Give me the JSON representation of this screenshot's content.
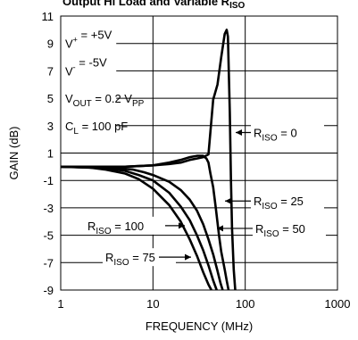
{
  "chart_data": {
    "type": "line",
    "title_fragment": "Output Hi Load and Variable R",
    "title_sub": "ISO",
    "xlabel": "FREQUENCY (MHz)",
    "ylabel": "GAIN (dB)",
    "xscale": "log",
    "xlim": [
      1,
      1000
    ],
    "ylim": [
      -9,
      11
    ],
    "x_ticks": [
      "1",
      "10",
      "100",
      "1000"
    ],
    "y_ticks": [
      "11",
      "9",
      "7",
      "5",
      "3",
      "1",
      "-1",
      "-3",
      "-5",
      "-7",
      "-9"
    ],
    "grid": true,
    "conditions": [
      {
        "base": "V",
        "sup": "+",
        "sub": "",
        "rest": " = +5V"
      },
      {
        "base": "V",
        "sup": "-",
        "sub": "",
        "rest": " = -5V"
      },
      {
        "base": "V",
        "sup": "",
        "sub": "OUT",
        "rest": " = 0.2 V",
        "rest_sub": "PP"
      },
      {
        "base": "C",
        "sup": "",
        "sub": "L",
        "rest": " = 100 pF"
      }
    ],
    "series": [
      {
        "name": "R_ISO = 0",
        "label_base": "R",
        "label_sub": "ISO",
        "label_rest": " = 0",
        "x": [
          1,
          5,
          10,
          15,
          20,
          25,
          30,
          35,
          40,
          45,
          50,
          55,
          60,
          63,
          65,
          68,
          70,
          72,
          75,
          78
        ],
        "y": [
          0,
          0,
          0.1,
          0.2,
          0.3,
          0.5,
          0.6,
          0.7,
          0.9,
          4.9,
          6.0,
          8.0,
          9.7,
          10.0,
          9.5,
          4.0,
          -1.0,
          -4.5,
          -7.5,
          -9
        ]
      },
      {
        "name": "R_ISO = 25",
        "label_base": "R",
        "label_sub": "ISO",
        "label_rest": " = 25",
        "x": [
          1,
          5,
          10,
          15,
          20,
          25,
          30,
          35,
          38,
          40,
          42,
          45,
          48,
          52,
          55,
          60,
          63,
          66
        ],
        "y": [
          0,
          0,
          0.1,
          0.3,
          0.5,
          0.7,
          0.8,
          0.8,
          0.6,
          0.3,
          -0.5,
          -1.5,
          -3.0,
          -5.0,
          -6.2,
          -7.5,
          -8.3,
          -9
        ]
      },
      {
        "name": "R_ISO = 50",
        "label_base": "R",
        "label_sub": "ISO",
        "label_rest": " = 50",
        "x": [
          1,
          4,
          6,
          8,
          10,
          15,
          20,
          25,
          30,
          35,
          40,
          45,
          50,
          54,
          57
        ],
        "y": [
          0,
          -0.1,
          -0.2,
          -0.4,
          -0.6,
          -1.1,
          -1.7,
          -2.4,
          -3.2,
          -4.2,
          -5.3,
          -6.4,
          -7.6,
          -8.5,
          -9
        ]
      },
      {
        "name": "R_ISO = 75",
        "label_base": "R",
        "label_sub": "ISO",
        "label_rest": " = 75",
        "x": [
          1,
          3,
          5,
          7,
          10,
          15,
          20,
          25,
          30,
          35,
          40,
          45,
          49
        ],
        "y": [
          0,
          -0.1,
          -0.3,
          -0.6,
          -1.0,
          -1.9,
          -2.9,
          -3.9,
          -5.0,
          -6.1,
          -7.2,
          -8.3,
          -9
        ]
      },
      {
        "name": "R_ISO = 100",
        "label_base": "R",
        "label_sub": "ISO",
        "label_rest": " = 100",
        "x": [
          1,
          2,
          3,
          5,
          7,
          10,
          15,
          20,
          25,
          30,
          35,
          40,
          43
        ],
        "y": [
          0,
          -0.05,
          -0.2,
          -0.5,
          -0.9,
          -1.6,
          -2.8,
          -4.0,
          -5.3,
          -6.5,
          -7.7,
          -8.6,
          -9
        ]
      }
    ]
  }
}
